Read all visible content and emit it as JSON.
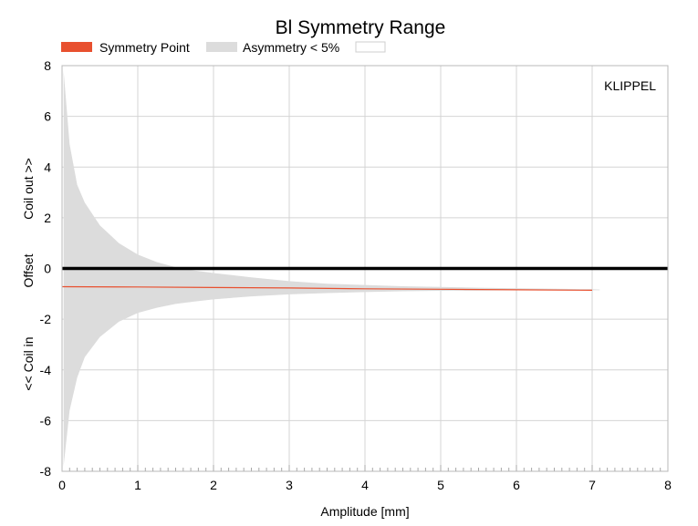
{
  "chart_data": {
    "type": "area",
    "title": "Bl Symmetry Range",
    "xlabel": "Amplitude [mm]",
    "ylabel_parts": [
      "<< Coil in",
      "Offset",
      "Coil out >>"
    ],
    "xlim": [
      0,
      8
    ],
    "ylim": [
      -8,
      8
    ],
    "x_ticks": [
      0,
      1,
      2,
      3,
      4,
      5,
      6,
      7,
      8
    ],
    "y_ticks": [
      -8,
      -6,
      -4,
      -2,
      0,
      2,
      4,
      6,
      8
    ],
    "grid": true,
    "legend_position": "top",
    "watermark": "KLIPPEL",
    "series": [
      {
        "name": "Symmetry Point",
        "kind": "line",
        "color": "#e8502f",
        "x": [
          0.0,
          1.0,
          2.0,
          3.0,
          4.0,
          5.0,
          6.0,
          7.0
        ],
        "y": [
          -0.72,
          -0.73,
          -0.75,
          -0.77,
          -0.8,
          -0.82,
          -0.84,
          -0.86
        ]
      },
      {
        "name": "Asymmetry < 5%",
        "kind": "band",
        "color": "#dcdcdc",
        "x": [
          0.02,
          0.1,
          0.2,
          0.3,
          0.5,
          0.75,
          1.0,
          1.25,
          1.5,
          1.75,
          2.0,
          2.5,
          3.0,
          3.5,
          4.0,
          4.5,
          5.0,
          5.5,
          6.0,
          6.5,
          7.0,
          7.1
        ],
        "upper": [
          7.8,
          4.9,
          3.3,
          2.6,
          1.7,
          1.0,
          0.55,
          0.25,
          0.05,
          -0.08,
          -0.18,
          -0.35,
          -0.5,
          -0.6,
          -0.65,
          -0.7,
          -0.73,
          -0.76,
          -0.78,
          -0.8,
          -0.82,
          -0.83
        ],
        "lower": [
          -7.8,
          -5.6,
          -4.3,
          -3.5,
          -2.7,
          -2.1,
          -1.75,
          -1.55,
          -1.4,
          -1.3,
          -1.22,
          -1.1,
          -1.02,
          -0.97,
          -0.93,
          -0.9,
          -0.88,
          -0.87,
          -0.86,
          -0.86,
          -0.86,
          -0.86
        ]
      },
      {
        "name": "",
        "kind": "line",
        "color": "#000000",
        "x": [
          0,
          8
        ],
        "y": [
          0.0,
          0.0
        ]
      }
    ]
  }
}
